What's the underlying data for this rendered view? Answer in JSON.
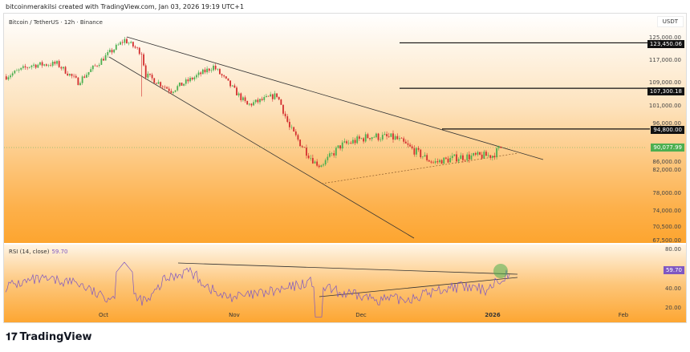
{
  "header": {
    "credit": "bitcoinmerakilsi created with TradingView.com, Jan 03, 2026 19:19 UTC+1"
  },
  "chart": {
    "symbol": "Bitcoin / TetherUS · 12h · Binance",
    "currency": "USDT",
    "price_ticks": [
      "125,000.00",
      "117,000.00",
      "109,000.00",
      "101,000.00",
      "96,000.00",
      "86,000.00",
      "82,000.00",
      "78,000.00",
      "74,000.00",
      "70,500.00",
      "67,500.00"
    ],
    "levels": [
      {
        "price": 123450.06,
        "label": "123,450.06"
      },
      {
        "price": 107300.18,
        "label": "107,300.18"
      },
      {
        "price": 94800,
        "label": "94,800.00"
      }
    ],
    "current_price": {
      "value": 90077.99,
      "label": "90,077.99",
      "color": "#4caf50"
    },
    "price_path": [
      [
        "2025-09-08",
        111500
      ],
      [
        "2025-09-14",
        115500
      ],
      [
        "2025-09-20",
        116000
      ],
      [
        "2025-09-25",
        109500
      ],
      [
        "2025-10-01",
        118000
      ],
      [
        "2025-10-06",
        124500
      ],
      [
        "2025-10-10",
        120000
      ],
      [
        "2025-10-11",
        112000
      ],
      [
        "2025-10-17",
        106500
      ],
      [
        "2025-10-27",
        115000
      ],
      [
        "2025-11-04",
        101500
      ],
      [
        "2025-11-11",
        105000
      ],
      [
        "2025-11-14",
        95000
      ],
      [
        "2025-11-21",
        84500
      ],
      [
        "2025-11-26",
        90500
      ],
      [
        "2025-12-03",
        93000
      ],
      [
        "2025-12-09",
        92500
      ],
      [
        "2025-12-18",
        86000
      ],
      [
        "2025-12-24",
        87500
      ],
      [
        "2026-01-01",
        88000
      ],
      [
        "2026-01-03",
        90078
      ]
    ],
    "up_color": "#4caf50",
    "down_color": "#d32f2f"
  },
  "rsi": {
    "label": "RSI (14, close)",
    "value": "59.70",
    "ticks": [
      "80.00",
      "40.00",
      "20.00"
    ],
    "color": "#7e57c2"
  },
  "time_axis": [
    "Oct",
    "Nov",
    "Dec",
    "2026",
    "Feb"
  ],
  "footer": {
    "logo": "TradingView"
  }
}
